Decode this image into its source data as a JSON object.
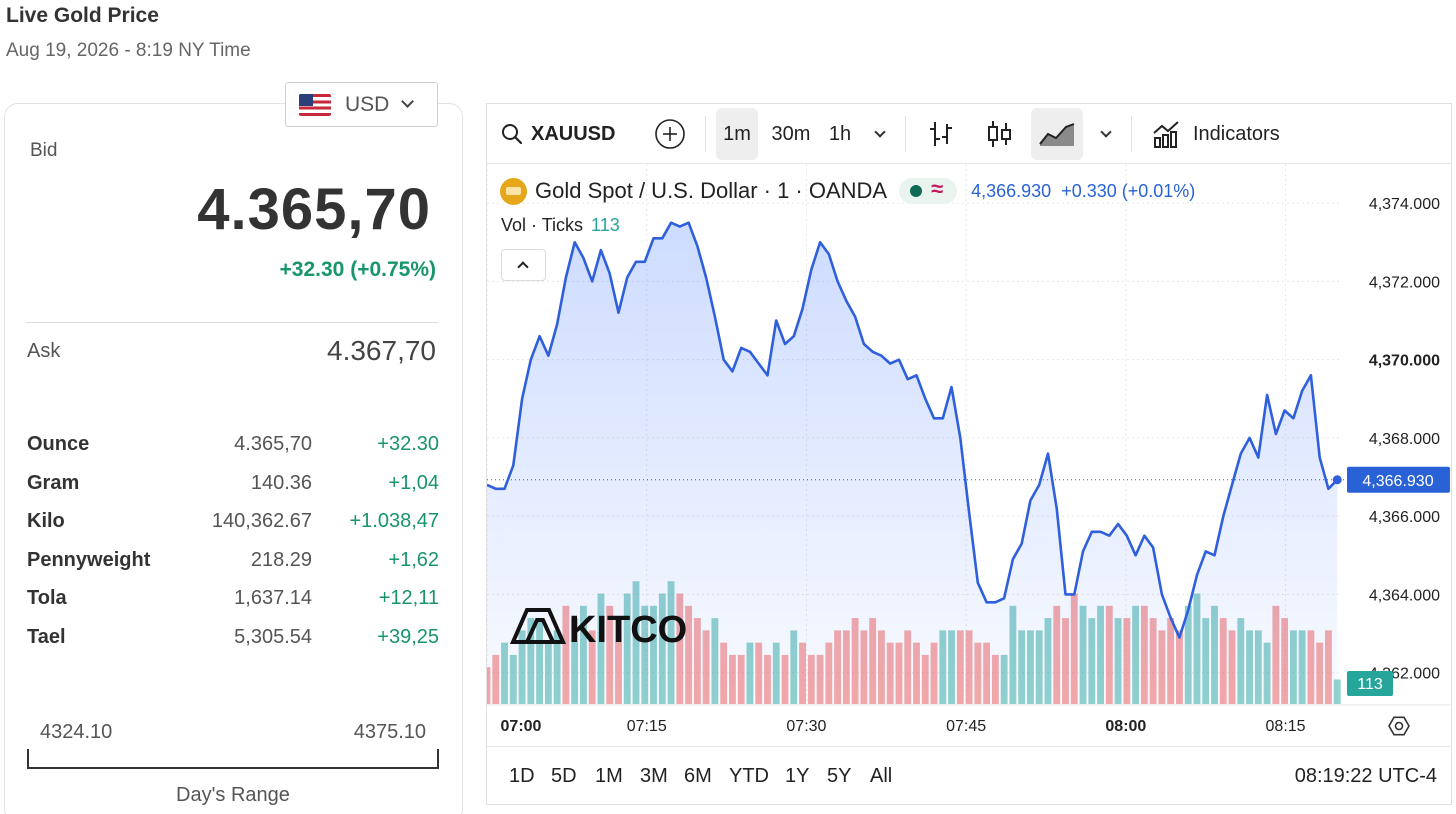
{
  "header": {
    "title": "Live Gold Price",
    "subtitle": "Aug 19, 2026 - 8:19 NY Time"
  },
  "currency": {
    "selected": "USD",
    "flag_icon": "us-flag-icon"
  },
  "bid": {
    "label": "Bid",
    "value": "4.365,70",
    "change": "+32.30 (+0.75%)"
  },
  "ask": {
    "label": "Ask",
    "value": "4.367,70"
  },
  "units": [
    {
      "name": "Ounce",
      "price": "4.365,70",
      "change": "+32.30"
    },
    {
      "name": "Gram",
      "price": "140.36",
      "change": "+1,04"
    },
    {
      "name": "Kilo",
      "price": "140,362.67",
      "change": "+1.038,47"
    },
    {
      "name": "Pennyweight",
      "price": "218.29",
      "change": "+1,62"
    },
    {
      "name": "Tola",
      "price": "1,637.14",
      "change": "+12,11"
    },
    {
      "name": "Tael",
      "price": "5,305.54",
      "change": "+39,25"
    }
  ],
  "day_range": {
    "low": "4324.10",
    "high": "4375.10",
    "caption": "Day's Range"
  },
  "toolbar": {
    "symbol": "XAUUSD",
    "intervals": [
      "1m",
      "30m",
      "1h"
    ],
    "active_interval": "1m",
    "indicators_label": "Indicators"
  },
  "legend": {
    "instrument": "Gold Spot / U.S. Dollar · 1 · OANDA",
    "price": "4,366.930",
    "change": "+0.330 (+0.01%)",
    "vol_label": "Vol · Ticks",
    "vol_value": "113"
  },
  "watermark": "KITCO",
  "ranges": [
    "1D",
    "5D",
    "1M",
    "3M",
    "6M",
    "YTD",
    "1Y",
    "5Y",
    "All"
  ],
  "clock": "08:19:22 UTC-4",
  "colors": {
    "line": "#2f5fdb",
    "up": "#26a69a",
    "down": "#ef5350",
    "positive_text": "#18956c",
    "price_tag": "#2962d6"
  },
  "chart_data": {
    "type": "area",
    "x_unit": "minutes since 07:00",
    "x_ticks": [
      {
        "label": "07:00",
        "x": 0,
        "bold": true
      },
      {
        "label": "07:15",
        "x": 15,
        "bold": false
      },
      {
        "label": "07:30",
        "x": 30,
        "bold": false
      },
      {
        "label": "07:45",
        "x": 45,
        "bold": false
      },
      {
        "label": "08:00",
        "x": 60,
        "bold": true
      },
      {
        "label": "08:15",
        "x": 75,
        "bold": false
      }
    ],
    "y_ticks": [
      "4,374.000",
      "4,372.000",
      "4,370.000",
      "4,368.000",
      "4,366.000",
      "4,364.000",
      "4,362.000"
    ],
    "y_tick_values": [
      4374,
      4372,
      4370,
      4368,
      4366,
      4364,
      4362
    ],
    "ylim": [
      4361.2,
      4375.0
    ],
    "last_price": 4366.93,
    "last_price_label": "4,366.930",
    "volume_tag": "113",
    "price": [
      4366.8,
      4366.7,
      4366.7,
      4367.3,
      4369.0,
      4370.0,
      4370.6,
      4370.1,
      4370.9,
      4372.1,
      4373.0,
      4372.6,
      4372.0,
      4372.8,
      4372.2,
      4371.2,
      4372.1,
      4372.5,
      4372.5,
      4373.1,
      4373.1,
      4373.5,
      4373.4,
      4373.5,
      4372.9,
      4372.1,
      4371.1,
      4370.0,
      4369.7,
      4370.3,
      4370.2,
      4369.9,
      4369.6,
      4371.0,
      4370.4,
      4370.6,
      4371.3,
      4372.3,
      4373.0,
      4372.7,
      4372.0,
      4371.5,
      4371.1,
      4370.4,
      4370.2,
      4370.1,
      4369.9,
      4370.0,
      4369.5,
      4369.6,
      4369.0,
      4368.5,
      4368.5,
      4369.3,
      4368.0,
      4366.1,
      4364.3,
      4363.8,
      4363.8,
      4363.9,
      4364.9,
      4365.3,
      4366.4,
      4366.8,
      4367.6,
      4366.2,
      4364.0,
      4364.0,
      4365.1,
      4365.6,
      4365.6,
      4365.5,
      4365.8,
      4365.5,
      4365.0,
      4365.5,
      4365.2,
      4364.0,
      4363.4,
      4362.9,
      4363.6,
      4364.5,
      4365.1,
      4365.0,
      4366.0,
      4366.8,
      4367.6,
      4368.0,
      4367.5,
      4369.1,
      4368.1,
      4368.7,
      4368.5,
      4369.2,
      4369.6,
      4367.5,
      4366.7,
      4366.93
    ],
    "volume": [
      3,
      4,
      5,
      4,
      6,
      7,
      7,
      5,
      6,
      8,
      7,
      8,
      6,
      9,
      8,
      7,
      9,
      10,
      8,
      8,
      9,
      10,
      9,
      8,
      7,
      6,
      7,
      5,
      4,
      4,
      5,
      5,
      4,
      5,
      4,
      6,
      5,
      4,
      4,
      5,
      6,
      6,
      7,
      6,
      7,
      6,
      5,
      5,
      6,
      5,
      4,
      5,
      6,
      6,
      6,
      6,
      5,
      5,
      4,
      4,
      8,
      6,
      6,
      6,
      7,
      8,
      7,
      9,
      8,
      7,
      8,
      8,
      7,
      7,
      8,
      8,
      7,
      6,
      7,
      6,
      8,
      9,
      7,
      8,
      7,
      6,
      7,
      6,
      6,
      5,
      8,
      7,
      6,
      6,
      6,
      5,
      6,
      2
    ],
    "volume_up": [
      false,
      false,
      true,
      true,
      true,
      true,
      true,
      true,
      true,
      false,
      true,
      true,
      false,
      true,
      false,
      false,
      true,
      true,
      true,
      true,
      true,
      true,
      false,
      false,
      false,
      false,
      true,
      false,
      false,
      false,
      true,
      false,
      false,
      true,
      false,
      true,
      false,
      false,
      false,
      false,
      false,
      false,
      false,
      false,
      false,
      false,
      false,
      false,
      false,
      false,
      false,
      false,
      true,
      true,
      false,
      false,
      false,
      false,
      false,
      true,
      true,
      true,
      true,
      true,
      true,
      false,
      false,
      false,
      true,
      true,
      true,
      false,
      true,
      false,
      true,
      false,
      false,
      false,
      false,
      false,
      true,
      true,
      true,
      true,
      false,
      false,
      true,
      true,
      true,
      true,
      false,
      false,
      true,
      true,
      false,
      false,
      false,
      true
    ]
  }
}
